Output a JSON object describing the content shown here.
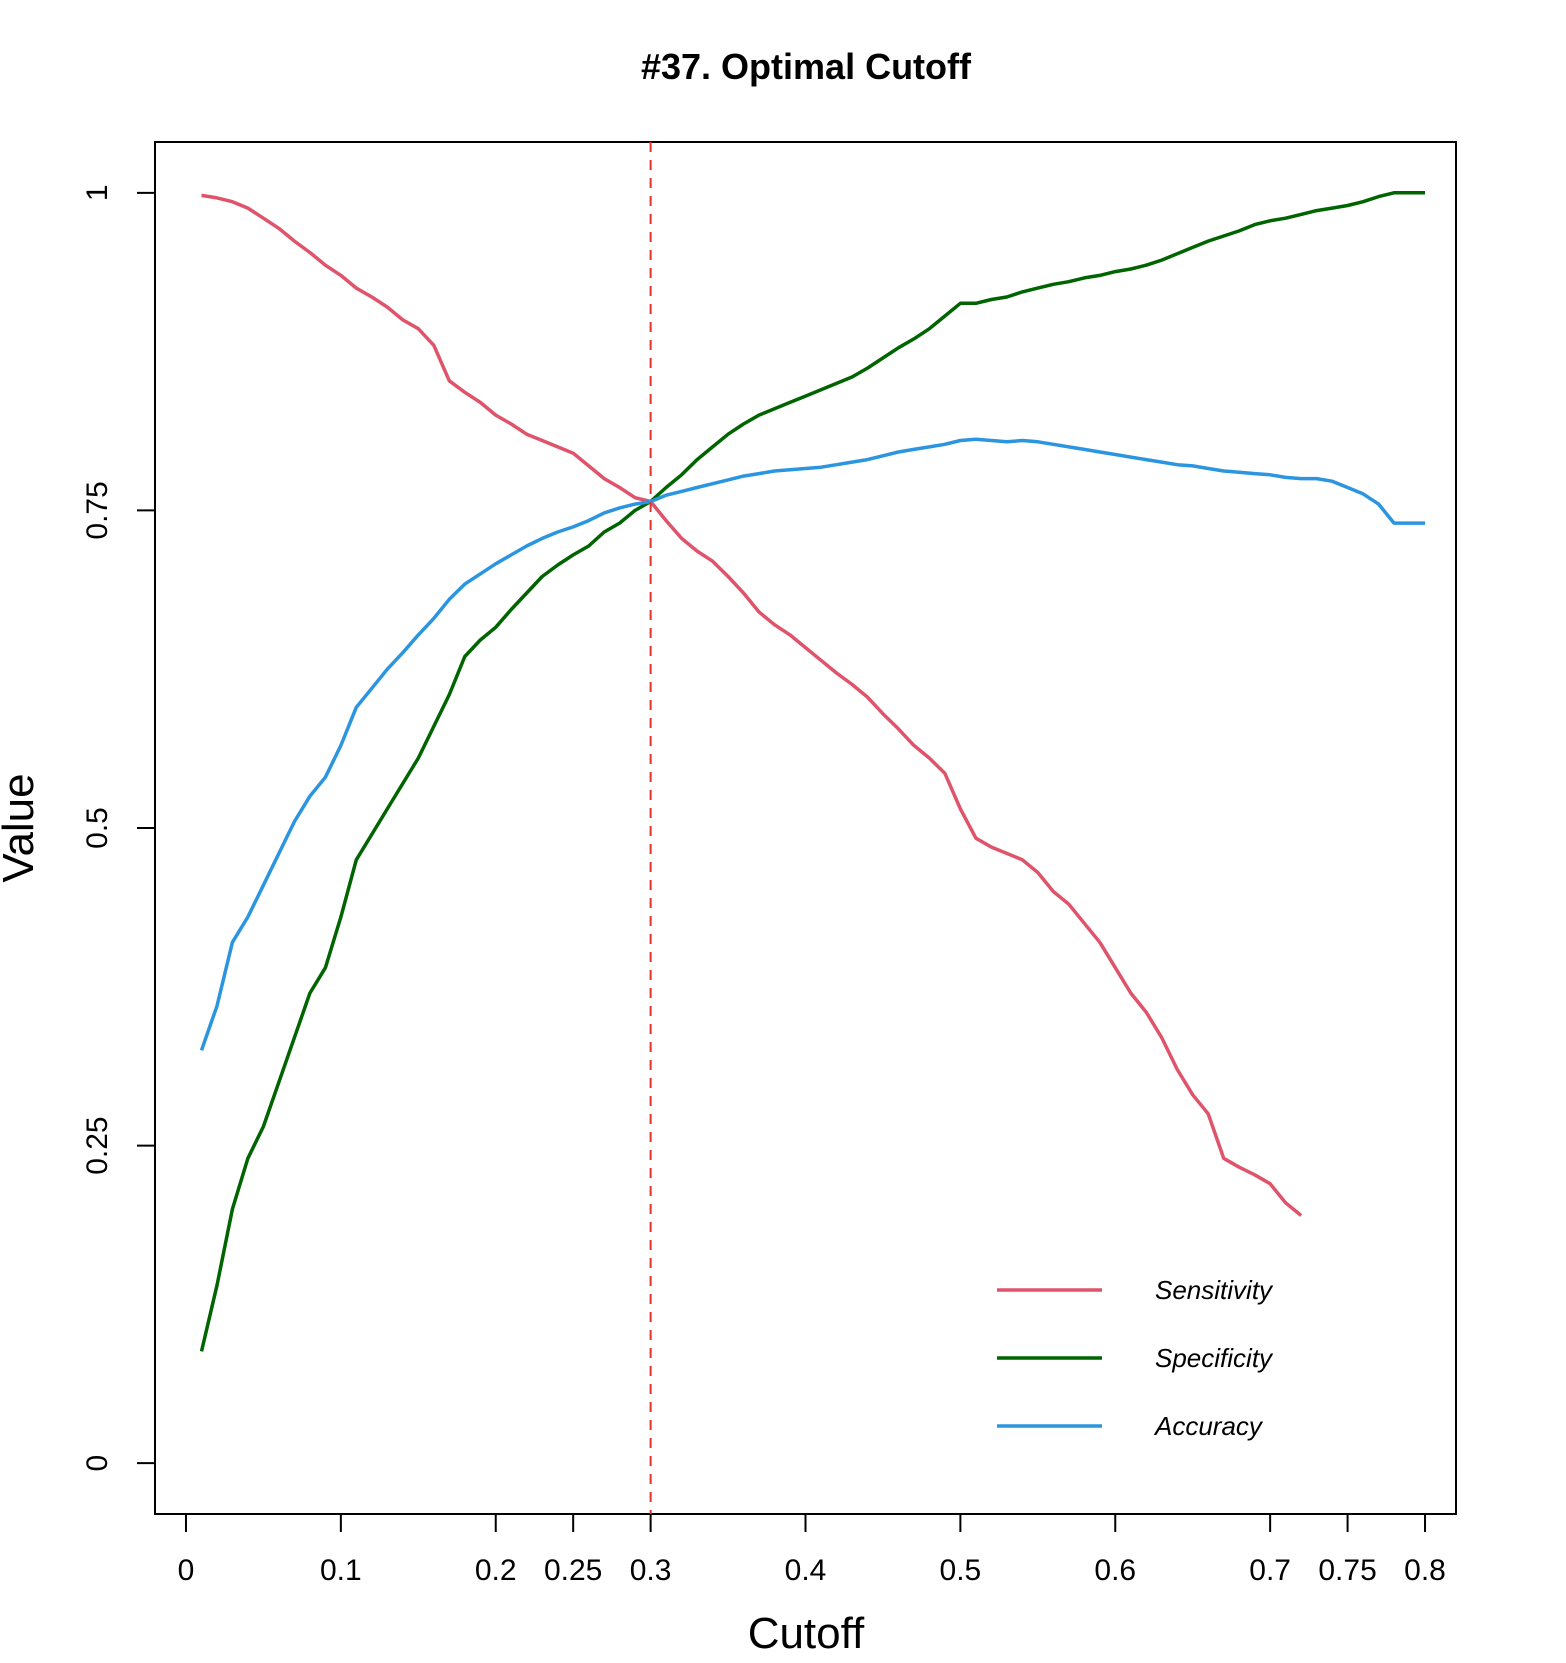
{
  "chart_data": {
    "type": "line",
    "title": "#37. Optimal Cutoff",
    "xlabel": "Cutoff",
    "ylabel": "Value",
    "xlim": [
      -0.02,
      0.82
    ],
    "ylim": [
      -0.04,
      1.04
    ],
    "x_ticks": [
      0,
      0.1,
      0.2,
      0.25,
      0.3,
      0.4,
      0.5,
      0.6,
      0.7,
      0.75,
      0.8
    ],
    "x_tick_labels": [
      "0",
      "0.1",
      "0.2",
      "0.25",
      "0.3",
      "0.4",
      "0.5",
      "0.6",
      "0.7",
      "0.75",
      "0.8"
    ],
    "y_ticks": [
      0,
      0.25,
      0.5,
      0.75,
      1
    ],
    "y_tick_labels": [
      "0",
      "0.25",
      "0.5",
      "0.75",
      "1"
    ],
    "grid": false,
    "legend_position": "bottom-right",
    "cutoff_line": {
      "x": 0.3,
      "color": "#e8302a",
      "style": "dashed"
    },
    "series": [
      {
        "name": "Sensitivity",
        "color": "#df536b",
        "points": [
          [
            0.01,
            0.998
          ],
          [
            0.02,
            0.996
          ],
          [
            0.03,
            0.993
          ],
          [
            0.04,
            0.988
          ],
          [
            0.05,
            0.98
          ],
          [
            0.06,
            0.972
          ],
          [
            0.07,
            0.962
          ],
          [
            0.08,
            0.953
          ],
          [
            0.09,
            0.943
          ],
          [
            0.1,
            0.935
          ],
          [
            0.11,
            0.925
          ],
          [
            0.12,
            0.918
          ],
          [
            0.13,
            0.91
          ],
          [
            0.14,
            0.9
          ],
          [
            0.15,
            0.893
          ],
          [
            0.16,
            0.88
          ],
          [
            0.17,
            0.852
          ],
          [
            0.18,
            0.843
          ],
          [
            0.19,
            0.835
          ],
          [
            0.2,
            0.825
          ],
          [
            0.21,
            0.818
          ],
          [
            0.22,
            0.81
          ],
          [
            0.23,
            0.805
          ],
          [
            0.24,
            0.8
          ],
          [
            0.25,
            0.795
          ],
          [
            0.26,
            0.785
          ],
          [
            0.27,
            0.775
          ],
          [
            0.28,
            0.768
          ],
          [
            0.29,
            0.76
          ],
          [
            0.3,
            0.757
          ],
          [
            0.31,
            0.742
          ],
          [
            0.32,
            0.728
          ],
          [
            0.33,
            0.718
          ],
          [
            0.34,
            0.71
          ],
          [
            0.35,
            0.698
          ],
          [
            0.36,
            0.685
          ],
          [
            0.37,
            0.67
          ],
          [
            0.38,
            0.66
          ],
          [
            0.39,
            0.652
          ],
          [
            0.4,
            0.642
          ],
          [
            0.41,
            0.632
          ],
          [
            0.42,
            0.622
          ],
          [
            0.43,
            0.613
          ],
          [
            0.44,
            0.603
          ],
          [
            0.45,
            0.59
          ],
          [
            0.46,
            0.578
          ],
          [
            0.47,
            0.565
          ],
          [
            0.48,
            0.555
          ],
          [
            0.49,
            0.543
          ],
          [
            0.5,
            0.515
          ],
          [
            0.51,
            0.492
          ],
          [
            0.52,
            0.485
          ],
          [
            0.53,
            0.48
          ],
          [
            0.54,
            0.475
          ],
          [
            0.55,
            0.465
          ],
          [
            0.56,
            0.45
          ],
          [
            0.57,
            0.44
          ],
          [
            0.58,
            0.425
          ],
          [
            0.59,
            0.41
          ],
          [
            0.6,
            0.39
          ],
          [
            0.61,
            0.37
          ],
          [
            0.62,
            0.355
          ],
          [
            0.63,
            0.335
          ],
          [
            0.64,
            0.31
          ],
          [
            0.65,
            0.29
          ],
          [
            0.66,
            0.275
          ],
          [
            0.67,
            0.24
          ],
          [
            0.68,
            0.233
          ],
          [
            0.69,
            0.227
          ],
          [
            0.7,
            0.22
          ],
          [
            0.71,
            0.205
          ],
          [
            0.72,
            0.195
          ]
        ]
      },
      {
        "name": "Specificity",
        "color": "#006400",
        "points": [
          [
            0.01,
            0.088
          ],
          [
            0.02,
            0.14
          ],
          [
            0.03,
            0.2
          ],
          [
            0.04,
            0.24
          ],
          [
            0.05,
            0.265
          ],
          [
            0.06,
            0.3
          ],
          [
            0.07,
            0.335
          ],
          [
            0.08,
            0.37
          ],
          [
            0.09,
            0.39
          ],
          [
            0.1,
            0.43
          ],
          [
            0.11,
            0.475
          ],
          [
            0.12,
            0.495
          ],
          [
            0.13,
            0.515
          ],
          [
            0.14,
            0.535
          ],
          [
            0.15,
            0.555
          ],
          [
            0.16,
            0.58
          ],
          [
            0.17,
            0.605
          ],
          [
            0.18,
            0.635
          ],
          [
            0.19,
            0.648
          ],
          [
            0.2,
            0.658
          ],
          [
            0.21,
            0.672
          ],
          [
            0.22,
            0.685
          ],
          [
            0.23,
            0.698
          ],
          [
            0.24,
            0.707
          ],
          [
            0.25,
            0.715
          ],
          [
            0.26,
            0.722
          ],
          [
            0.27,
            0.733
          ],
          [
            0.28,
            0.74
          ],
          [
            0.29,
            0.75
          ],
          [
            0.3,
            0.757
          ],
          [
            0.31,
            0.768
          ],
          [
            0.32,
            0.778
          ],
          [
            0.33,
            0.79
          ],
          [
            0.34,
            0.8
          ],
          [
            0.35,
            0.81
          ],
          [
            0.36,
            0.818
          ],
          [
            0.37,
            0.825
          ],
          [
            0.38,
            0.83
          ],
          [
            0.39,
            0.835
          ],
          [
            0.4,
            0.84
          ],
          [
            0.41,
            0.845
          ],
          [
            0.42,
            0.85
          ],
          [
            0.43,
            0.855
          ],
          [
            0.44,
            0.862
          ],
          [
            0.45,
            0.87
          ],
          [
            0.46,
            0.878
          ],
          [
            0.47,
            0.885
          ],
          [
            0.48,
            0.893
          ],
          [
            0.49,
            0.903
          ],
          [
            0.5,
            0.913
          ],
          [
            0.51,
            0.913
          ],
          [
            0.52,
            0.916
          ],
          [
            0.53,
            0.918
          ],
          [
            0.54,
            0.922
          ],
          [
            0.55,
            0.925
          ],
          [
            0.56,
            0.928
          ],
          [
            0.57,
            0.93
          ],
          [
            0.58,
            0.933
          ],
          [
            0.59,
            0.935
          ],
          [
            0.6,
            0.938
          ],
          [
            0.61,
            0.94
          ],
          [
            0.62,
            0.943
          ],
          [
            0.63,
            0.947
          ],
          [
            0.64,
            0.952
          ],
          [
            0.65,
            0.957
          ],
          [
            0.66,
            0.962
          ],
          [
            0.67,
            0.966
          ],
          [
            0.68,
            0.97
          ],
          [
            0.69,
            0.975
          ],
          [
            0.7,
            0.978
          ],
          [
            0.71,
            0.98
          ],
          [
            0.72,
            0.983
          ],
          [
            0.73,
            0.986
          ],
          [
            0.74,
            0.988
          ],
          [
            0.75,
            0.99
          ],
          [
            0.76,
            0.993
          ],
          [
            0.77,
            0.997
          ],
          [
            0.78,
            1.0
          ],
          [
            0.79,
            1.0
          ],
          [
            0.8,
            1.0
          ]
        ]
      },
      {
        "name": "Accuracy",
        "color": "#2b95e0",
        "points": [
          [
            0.01,
            0.325
          ],
          [
            0.02,
            0.36
          ],
          [
            0.03,
            0.41
          ],
          [
            0.04,
            0.43
          ],
          [
            0.05,
            0.455
          ],
          [
            0.06,
            0.48
          ],
          [
            0.07,
            0.505
          ],
          [
            0.08,
            0.525
          ],
          [
            0.09,
            0.54
          ],
          [
            0.1,
            0.565
          ],
          [
            0.11,
            0.595
          ],
          [
            0.12,
            0.61
          ],
          [
            0.13,
            0.625
          ],
          [
            0.14,
            0.638
          ],
          [
            0.15,
            0.652
          ],
          [
            0.16,
            0.665
          ],
          [
            0.17,
            0.68
          ],
          [
            0.18,
            0.692
          ],
          [
            0.19,
            0.7
          ],
          [
            0.2,
            0.708
          ],
          [
            0.21,
            0.715
          ],
          [
            0.22,
            0.722
          ],
          [
            0.23,
            0.728
          ],
          [
            0.24,
            0.733
          ],
          [
            0.25,
            0.737
          ],
          [
            0.26,
            0.742
          ],
          [
            0.27,
            0.748
          ],
          [
            0.28,
            0.752
          ],
          [
            0.29,
            0.755
          ],
          [
            0.3,
            0.757
          ],
          [
            0.31,
            0.762
          ],
          [
            0.32,
            0.765
          ],
          [
            0.33,
            0.768
          ],
          [
            0.34,
            0.771
          ],
          [
            0.35,
            0.774
          ],
          [
            0.36,
            0.777
          ],
          [
            0.37,
            0.779
          ],
          [
            0.38,
            0.781
          ],
          [
            0.39,
            0.782
          ],
          [
            0.4,
            0.783
          ],
          [
            0.41,
            0.784
          ],
          [
            0.42,
            0.786
          ],
          [
            0.43,
            0.788
          ],
          [
            0.44,
            0.79
          ],
          [
            0.45,
            0.793
          ],
          [
            0.46,
            0.796
          ],
          [
            0.47,
            0.798
          ],
          [
            0.48,
            0.8
          ],
          [
            0.49,
            0.802
          ],
          [
            0.5,
            0.805
          ],
          [
            0.51,
            0.806
          ],
          [
            0.52,
            0.805
          ],
          [
            0.53,
            0.804
          ],
          [
            0.54,
            0.805
          ],
          [
            0.55,
            0.804
          ],
          [
            0.56,
            0.802
          ],
          [
            0.57,
            0.8
          ],
          [
            0.58,
            0.798
          ],
          [
            0.59,
            0.796
          ],
          [
            0.6,
            0.794
          ],
          [
            0.61,
            0.792
          ],
          [
            0.62,
            0.79
          ],
          [
            0.63,
            0.788
          ],
          [
            0.64,
            0.786
          ],
          [
            0.65,
            0.785
          ],
          [
            0.66,
            0.783
          ],
          [
            0.67,
            0.781
          ],
          [
            0.68,
            0.78
          ],
          [
            0.69,
            0.779
          ],
          [
            0.7,
            0.778
          ],
          [
            0.71,
            0.776
          ],
          [
            0.72,
            0.775
          ],
          [
            0.73,
            0.775
          ],
          [
            0.74,
            0.773
          ],
          [
            0.75,
            0.768
          ],
          [
            0.76,
            0.763
          ],
          [
            0.77,
            0.755
          ],
          [
            0.78,
            0.74
          ],
          [
            0.79,
            0.74
          ],
          [
            0.8,
            0.74
          ]
        ]
      }
    ]
  }
}
